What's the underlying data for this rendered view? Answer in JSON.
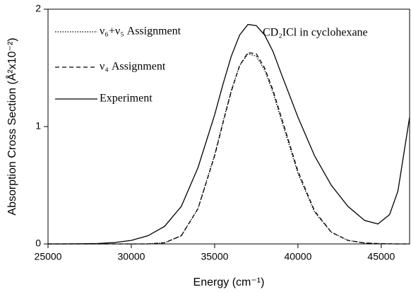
{
  "chart_data": {
    "type": "line",
    "title": "CD₂ICl in cyclohexane",
    "xlabel": "Energy (cm⁻¹)",
    "ylabel": "Absorption Cross Section (Å²x10⁻²)",
    "x": [
      25000,
      26000,
      27000,
      28000,
      29000,
      30000,
      31000,
      32000,
      33000,
      34000,
      35000,
      35500,
      36000,
      36500,
      37000,
      37500,
      38000,
      38500,
      39000,
      40000,
      41000,
      42000,
      43000,
      44000,
      44800,
      45500,
      46000,
      46700
    ],
    "series": [
      {
        "name": "ν₆+ν₅ Assignment",
        "color": "#000000",
        "dash": "dotted",
        "values": [
          0,
          0,
          0,
          0,
          0,
          0,
          0,
          0.01,
          0.07,
          0.3,
          0.76,
          1.04,
          1.31,
          1.52,
          1.62,
          1.6,
          1.48,
          1.29,
          1.06,
          0.6,
          0.27,
          0.1,
          0.03,
          0.008,
          0.003,
          0.001,
          0,
          0
        ]
      },
      {
        "name": "ν₄ Assignment",
        "color": "#000000",
        "dash": "dashed",
        "values": [
          0,
          0,
          0,
          0,
          0,
          0,
          0,
          0.01,
          0.07,
          0.3,
          0.75,
          1.03,
          1.3,
          1.52,
          1.63,
          1.62,
          1.5,
          1.31,
          1.08,
          0.62,
          0.28,
          0.1,
          0.03,
          0.008,
          0.003,
          0.001,
          0,
          0
        ]
      },
      {
        "name": "Experiment",
        "color": "#000000",
        "dash": "solid",
        "values": [
          0,
          0,
          0.001,
          0.004,
          0.012,
          0.03,
          0.07,
          0.15,
          0.32,
          0.65,
          1.1,
          1.36,
          1.6,
          1.78,
          1.87,
          1.86,
          1.78,
          1.64,
          1.45,
          1.08,
          0.75,
          0.5,
          0.32,
          0.2,
          0.17,
          0.25,
          0.45,
          1.08
        ]
      }
    ],
    "xlim": [
      25000,
      46700
    ],
    "xticks": [
      25000,
      30000,
      35000,
      40000,
      45000
    ],
    "ylim": [
      0,
      2
    ],
    "yticks": [
      0,
      1,
      2
    ],
    "legend": "upper left",
    "grid": false
  }
}
